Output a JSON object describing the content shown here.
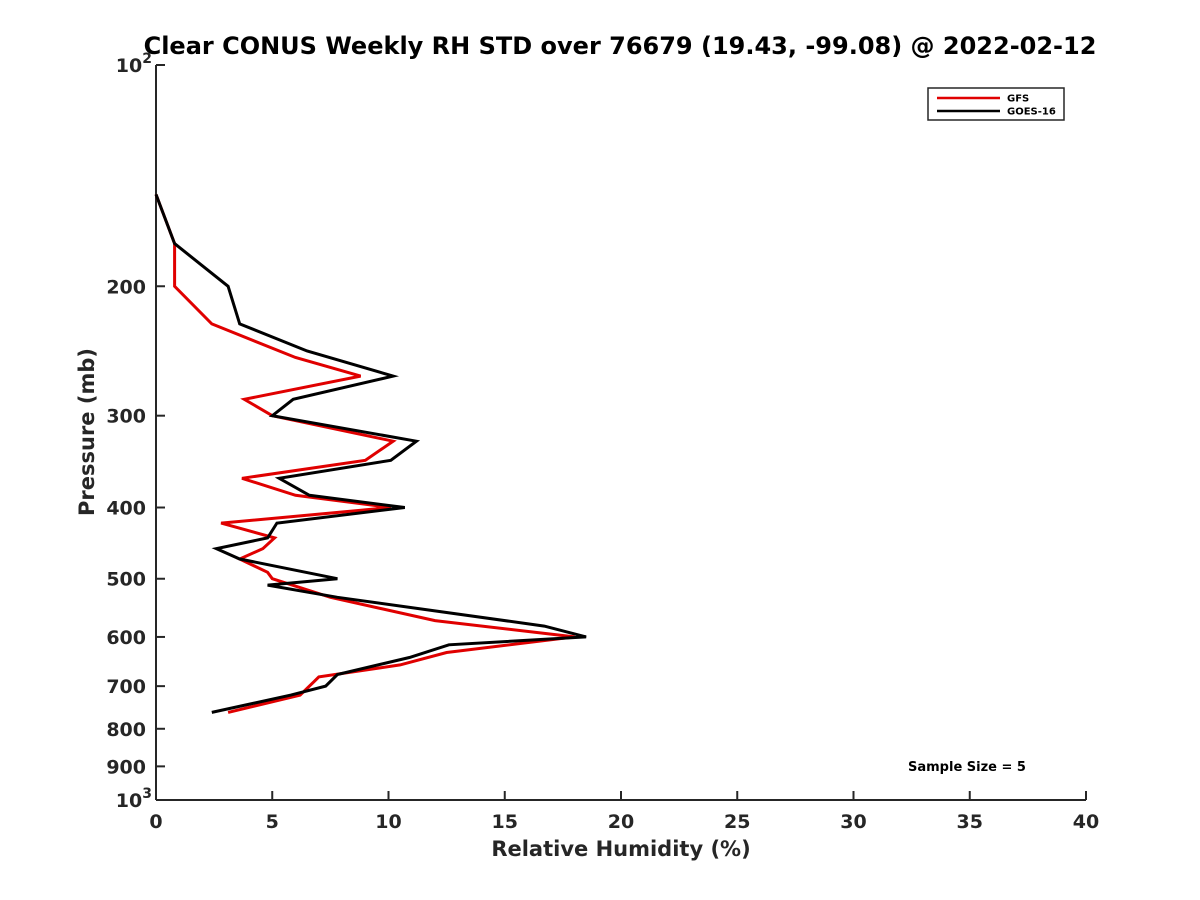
{
  "chart_data": {
    "type": "line",
    "title": "Clear CONUS Weekly RH STD over 76679 (19.43, -99.08) @ 2022-02-12",
    "xlabel": "Relative Humidity (%)",
    "ylabel": "Pressure (mb)",
    "xlim": [
      0,
      40
    ],
    "ylim": [
      1000,
      100
    ],
    "yscale": "log",
    "y_reversed": true,
    "xticks": [
      0,
      5,
      10,
      15,
      20,
      25,
      30,
      35,
      40
    ],
    "yticks": [
      {
        "value": 100,
        "label": "10",
        "sup": "2"
      },
      {
        "value": 200,
        "label": "200"
      },
      {
        "value": 300,
        "label": "300"
      },
      {
        "value": 400,
        "label": "400"
      },
      {
        "value": 500,
        "label": "500"
      },
      {
        "value": 600,
        "label": "600"
      },
      {
        "value": 700,
        "label": "700"
      },
      {
        "value": 800,
        "label": "800"
      },
      {
        "value": 900,
        "label": "900"
      },
      {
        "value": 1000,
        "label": "10",
        "sup": "3"
      }
    ],
    "grid": false,
    "legend_position": "top-right",
    "annotation": "Sample Size = 5",
    "series": [
      {
        "name": "GFS",
        "color": "#e00000",
        "x": [
          0,
          0.8,
          0.8,
          2.4,
          6.0,
          8.8,
          3.8,
          5.0,
          10.2,
          9.0,
          3.7,
          6.0,
          10.1,
          2.8,
          5.1,
          4.6,
          3.6,
          4.8,
          5.0,
          7.5,
          12.0,
          18.0,
          12.5,
          10.5,
          7.0,
          6.8,
          6.2,
          3.1
        ],
        "y": [
          150,
          175,
          200,
          225,
          250,
          265,
          285,
          300,
          325,
          345,
          365,
          385,
          400,
          420,
          440,
          455,
          470,
          490,
          500,
          530,
          570,
          600,
          630,
          655,
          680,
          690,
          720,
          760
        ]
      },
      {
        "name": "GOES-16",
        "color": "#000000",
        "x": [
          0,
          0.8,
          3.1,
          3.6,
          6.5,
          10.2,
          5.9,
          5.0,
          11.2,
          10.1,
          5.3,
          6.6,
          10.7,
          5.2,
          4.8,
          2.6,
          3.6,
          7.8,
          4.8,
          7.8,
          16.7,
          18.5,
          12.6,
          10.9,
          7.8,
          7.3,
          5.8,
          2.4
        ],
        "y": [
          150,
          175,
          200,
          225,
          245,
          265,
          285,
          300,
          325,
          345,
          365,
          385,
          400,
          420,
          440,
          455,
          470,
          500,
          510,
          530,
          580,
          600,
          615,
          640,
          675,
          700,
          720,
          760
        ]
      }
    ]
  }
}
